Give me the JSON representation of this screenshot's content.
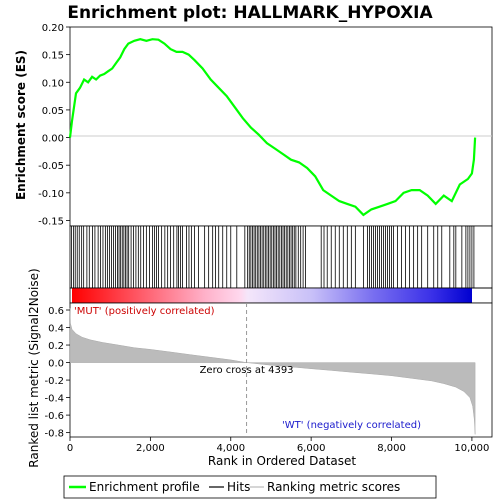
{
  "title": "Enrichment plot: HALLMARK_HYPOXIA",
  "chart_data": [
    {
      "type": "line",
      "name": "enrichment-profile",
      "ylabel": "Enrichment score (ES)",
      "ylim": [
        -0.16,
        0.2
      ],
      "xlim": [
        0,
        10500
      ],
      "yticks": [
        "0.20",
        "0.15",
        "0.10",
        "0.05",
        "0.00",
        "-0.05",
        "-0.10",
        "-0.15"
      ],
      "ytick_values": [
        0.2,
        0.15,
        0.1,
        0.05,
        0.0,
        -0.05,
        -0.1,
        -0.15
      ],
      "x": [
        0,
        50,
        150,
        250,
        350,
        450,
        550,
        650,
        750,
        850,
        950,
        1050,
        1150,
        1250,
        1350,
        1450,
        1600,
        1750,
        1900,
        2050,
        2200,
        2350,
        2500,
        2650,
        2800,
        2950,
        3100,
        3300,
        3500,
        3700,
        3900,
        4100,
        4300,
        4500,
        4700,
        4900,
        5100,
        5300,
        5500,
        5700,
        5900,
        6100,
        6300,
        6500,
        6700,
        6900,
        7100,
        7300,
        7500,
        7700,
        7900,
        8100,
        8300,
        8500,
        8700,
        8900,
        9100,
        9300,
        9500,
        9700,
        9900,
        10000,
        10050,
        10080
      ],
      "y": [
        0.0,
        0.03,
        0.08,
        0.09,
        0.105,
        0.1,
        0.11,
        0.105,
        0.112,
        0.115,
        0.12,
        0.125,
        0.135,
        0.145,
        0.16,
        0.17,
        0.175,
        0.178,
        0.175,
        0.178,
        0.177,
        0.17,
        0.16,
        0.155,
        0.155,
        0.15,
        0.14,
        0.125,
        0.105,
        0.09,
        0.075,
        0.055,
        0.035,
        0.018,
        0.005,
        -0.01,
        -0.02,
        -0.03,
        -0.04,
        -0.045,
        -0.055,
        -0.07,
        -0.095,
        -0.105,
        -0.115,
        -0.12,
        -0.125,
        -0.14,
        -0.13,
        -0.125,
        -0.12,
        -0.115,
        -0.1,
        -0.095,
        -0.095,
        -0.105,
        -0.12,
        -0.105,
        -0.115,
        -0.085,
        -0.075,
        -0.065,
        -0.04,
        0.0
      ],
      "color": "#00ff00"
    },
    {
      "type": "scatter",
      "name": "hits",
      "hit_positions": [
        40,
        90,
        130,
        180,
        230,
        290,
        340,
        420,
        480,
        560,
        620,
        700,
        760,
        820,
        880,
        930,
        980,
        1030,
        1080,
        1130,
        1180,
        1220,
        1260,
        1300,
        1340,
        1380,
        1420,
        1460,
        1520,
        1580,
        1640,
        1700,
        1760,
        1830,
        1900,
        1980,
        2050,
        2100,
        2150,
        2200,
        2280,
        2360,
        2430,
        2500,
        2580,
        2660,
        2700,
        2750,
        2800,
        2900,
        2960,
        3020,
        3100,
        3200,
        3350,
        3450,
        3550,
        3620,
        3700,
        3800,
        3900,
        4000,
        4150,
        4350,
        4420,
        4460,
        4500,
        4540,
        4580,
        4620,
        4660,
        4700,
        4740,
        4780,
        4820,
        4860,
        4900,
        4940,
        4980,
        5020,
        5060,
        5100,
        5140,
        5180,
        5220,
        5260,
        5300,
        5340,
        5380,
        5420,
        5460,
        5500,
        5540,
        5580,
        5620,
        5680,
        5740,
        5800,
        5860,
        6250,
        6320,
        6400,
        6500,
        6600,
        6700,
        6800,
        6900,
        7000,
        7100,
        7300,
        7400,
        7450,
        7500,
        7550,
        7600,
        7650,
        7700,
        7750,
        7800,
        7850,
        7900,
        7950,
        8000,
        8050,
        8150,
        8250,
        8350,
        8450,
        8550,
        8650,
        8750,
        8900,
        9050,
        9150,
        9250,
        9450,
        9550,
        9600,
        9750,
        9850,
        9900,
        9950,
        10000,
        10050
      ]
    },
    {
      "type": "area",
      "name": "ranked-list-metric",
      "ylabel": "Ranked list metric (Signal2Noise)",
      "xlabel": "Rank in Ordered Dataset",
      "ylim": [
        -0.85,
        0.68
      ],
      "yticks": [
        "0.6",
        "0.4",
        "0.2",
        "0.0",
        "-0.2",
        "-0.4",
        "-0.6",
        "-0.8"
      ],
      "ytick_values": [
        0.6,
        0.4,
        0.2,
        0.0,
        -0.2,
        -0.4,
        -0.6,
        -0.8
      ],
      "xticks": [
        "0",
        "2,000",
        "4,000",
        "6,000",
        "8,000",
        "10,000"
      ],
      "xtick_values": [
        0,
        2000,
        4000,
        6000,
        8000,
        10000
      ],
      "x": [
        0,
        10,
        50,
        150,
        300,
        500,
        800,
        1200,
        1600,
        2000,
        2500,
        3000,
        3500,
        4000,
        4393,
        5000,
        5500,
        6000,
        6500,
        7000,
        7500,
        8000,
        8500,
        9000,
        9300,
        9600,
        9800,
        9950,
        10020,
        10060,
        10080
      ],
      "y": [
        0.62,
        0.45,
        0.38,
        0.33,
        0.29,
        0.26,
        0.23,
        0.2,
        0.17,
        0.15,
        0.12,
        0.09,
        0.06,
        0.03,
        0.0,
        -0.03,
        -0.05,
        -0.07,
        -0.09,
        -0.11,
        -0.13,
        -0.15,
        -0.18,
        -0.21,
        -0.24,
        -0.28,
        -0.33,
        -0.4,
        -0.5,
        -0.65,
        -0.82
      ],
      "zero_cross_label": "Zero cross at 4393",
      "zero_cross": 4393,
      "pos_label": "'MUT' (positively correlated)",
      "neg_label": "'WT' (negatively correlated)",
      "pos_color": "#ff0000",
      "neg_color": "#0000ff"
    }
  ],
  "legend": {
    "items": [
      {
        "label": "Enrichment profile",
        "color": "#00ff00"
      },
      {
        "label": "Hits",
        "color": "#000000"
      },
      {
        "label": "Ranking metric scores",
        "color": "#bbbbbb"
      }
    ]
  }
}
